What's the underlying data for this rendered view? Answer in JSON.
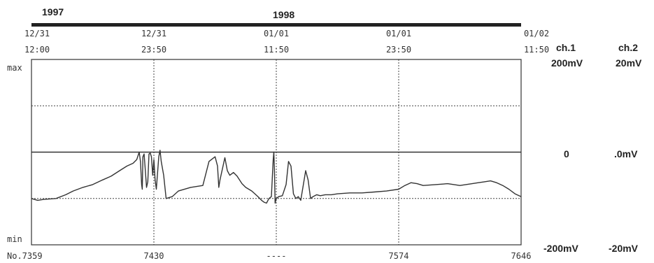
{
  "chart_data": {
    "type": "line",
    "years": [
      {
        "label": "1997",
        "at": 0
      },
      {
        "label": "1998",
        "at": 2
      }
    ],
    "x_ticks": [
      {
        "date": "12/31",
        "time": "12:00",
        "sample": "No.7359"
      },
      {
        "date": "12/31",
        "time": "23:50",
        "sample": "7430"
      },
      {
        "date": "01/01",
        "time": "11:50",
        "sample": "----"
      },
      {
        "date": "01/01",
        "time": "23:50",
        "sample": "7574"
      },
      {
        "date": "01/02",
        "time": "11:50",
        "sample": "7646"
      }
    ],
    "y_labels": {
      "top": "max",
      "bottom": "min"
    },
    "channels": [
      {
        "name": "ch.1",
        "full_scale": "200mV",
        "zero": "0",
        "min": "-200mV"
      },
      {
        "name": "ch.2",
        "full_scale": "20mV",
        "zero": ".0mV",
        "min": "-20mV"
      }
    ],
    "ylim": [
      -1,
      1
    ],
    "series": [
      {
        "values": [
          [
            0,
            0
          ],
          [
            4,
            0
          ],
          [
            4.001,
            0
          ]
        ]
      },
      {
        "x": [
          0,
          0.05,
          0.1,
          0.2,
          0.28,
          0.34,
          0.42,
          0.5,
          0.58,
          0.65,
          0.72,
          0.78,
          0.83,
          0.86,
          0.88,
          0.89,
          0.9,
          0.905,
          0.91,
          0.92,
          0.93,
          0.94,
          0.95,
          0.96,
          0.97,
          0.98,
          0.99,
          1.0,
          1.01,
          1.02,
          1.04,
          1.05,
          1.06,
          1.08,
          1.1,
          1.15,
          1.2,
          1.3,
          1.4,
          1.45,
          1.5,
          1.52,
          1.53,
          1.54,
          1.56,
          1.58,
          1.6,
          1.62,
          1.65,
          1.68,
          1.7,
          1.72,
          1.75,
          1.8,
          1.85,
          1.88,
          1.9,
          1.92,
          1.94,
          1.96,
          1.975,
          1.98,
          1.985,
          1.99,
          2.0,
          2.02,
          2.05,
          2.08,
          2.1,
          2.12,
          2.14,
          2.16,
          2.18,
          2.2,
          2.24,
          2.26,
          2.28,
          2.3,
          2.33,
          2.36,
          2.4,
          2.45,
          2.5,
          2.6,
          2.7,
          2.8,
          2.9,
          3.0,
          3.05,
          3.1,
          3.15,
          3.2,
          3.3,
          3.4,
          3.5,
          3.6,
          3.65,
          3.7,
          3.75,
          3.8,
          3.85,
          3.9,
          3.95,
          4.0
        ],
        "y": [
          -0.5,
          -0.52,
          -0.51,
          -0.5,
          -0.46,
          -0.42,
          -0.38,
          -0.35,
          -0.3,
          -0.26,
          -0.2,
          -0.15,
          -0.12,
          -0.08,
          0.0,
          -0.1,
          -0.35,
          -0.4,
          -0.05,
          -0.02,
          -0.2,
          -0.38,
          -0.32,
          -0.02,
          -0.01,
          -0.05,
          -0.25,
          -0.08,
          -0.3,
          -0.4,
          -0.05,
          0.02,
          -0.1,
          -0.25,
          -0.5,
          -0.48,
          -0.42,
          -0.38,
          -0.36,
          -0.1,
          -0.05,
          -0.15,
          -0.38,
          -0.3,
          -0.18,
          -0.06,
          -0.2,
          -0.25,
          -0.22,
          -0.26,
          -0.3,
          -0.34,
          -0.38,
          -0.42,
          -0.48,
          -0.52,
          -0.54,
          -0.55,
          -0.5,
          -0.48,
          -0.08,
          0.0,
          -0.2,
          -0.55,
          -0.5,
          -0.48,
          -0.47,
          -0.35,
          -0.1,
          -0.15,
          -0.45,
          -0.5,
          -0.48,
          -0.52,
          -0.2,
          -0.3,
          -0.5,
          -0.48,
          -0.46,
          -0.47,
          -0.46,
          -0.46,
          -0.45,
          -0.44,
          -0.44,
          -0.43,
          -0.42,
          -0.4,
          -0.36,
          -0.33,
          -0.34,
          -0.36,
          -0.35,
          -0.34,
          -0.36,
          -0.34,
          -0.33,
          -0.32,
          -0.31,
          -0.33,
          -0.36,
          -0.4,
          -0.45,
          -0.48
        ]
      }
    ],
    "grid": true
  }
}
